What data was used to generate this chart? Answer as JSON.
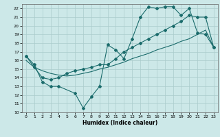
{
  "xlabel": "Humidex (Indice chaleur)",
  "bg_color": "#cce8e8",
  "line_color": "#1a6b6b",
  "grid_color": "#aacccc",
  "xlim": [
    -0.5,
    23.5
  ],
  "ylim": [
    10,
    22.5
  ],
  "xticks": [
    0,
    1,
    2,
    3,
    4,
    5,
    6,
    7,
    8,
    9,
    10,
    11,
    12,
    13,
    14,
    15,
    16,
    17,
    18,
    19,
    20,
    21,
    22,
    23
  ],
  "yticks": [
    10,
    11,
    12,
    13,
    14,
    15,
    16,
    17,
    18,
    19,
    20,
    21,
    22
  ],
  "line1_x": [
    0,
    1,
    2,
    3,
    4,
    6,
    7,
    8,
    9,
    10,
    11,
    12,
    13,
    14,
    15,
    16,
    17,
    18,
    19,
    20,
    21,
    22,
    23
  ],
  "line1_y": [
    16.5,
    15.5,
    13.5,
    13.0,
    13.0,
    12.2,
    10.5,
    11.8,
    13.0,
    17.8,
    17.2,
    16.2,
    18.5,
    21.0,
    22.2,
    22.0,
    22.2,
    22.2,
    21.2,
    22.0,
    19.2,
    19.0,
    17.5
  ],
  "line2_x": [
    0,
    1,
    2,
    3,
    4,
    5,
    6,
    7,
    8,
    9,
    10,
    11,
    12,
    13,
    14,
    15,
    16,
    17,
    18,
    19,
    20,
    21,
    22,
    23
  ],
  "line2_y": [
    16.0,
    15.2,
    14.8,
    14.5,
    14.3,
    14.2,
    14.3,
    14.5,
    14.7,
    15.0,
    15.2,
    15.5,
    15.8,
    16.2,
    16.5,
    16.8,
    17.2,
    17.5,
    17.8,
    18.2,
    18.5,
    19.0,
    19.5,
    17.5
  ],
  "line3_x": [
    0,
    1,
    2,
    3,
    4,
    5,
    6,
    7,
    8,
    9,
    10,
    11,
    12,
    13,
    14,
    15,
    16,
    17,
    18,
    19,
    20,
    21,
    22,
    23
  ],
  "line3_y": [
    16.5,
    15.2,
    14.0,
    13.8,
    14.0,
    14.5,
    14.8,
    15.0,
    15.2,
    15.5,
    15.5,
    16.2,
    17.0,
    17.5,
    18.0,
    18.5,
    19.0,
    19.5,
    20.0,
    20.5,
    21.2,
    21.0,
    21.0,
    17.5
  ],
  "marker1_x": [
    0,
    1,
    2,
    3,
    4,
    6,
    7,
    8,
    9,
    10,
    11,
    12,
    13,
    14,
    15,
    16,
    17,
    18,
    19,
    20,
    21,
    22,
    23
  ],
  "marker1_y": [
    16.5,
    15.5,
    13.5,
    13.0,
    13.0,
    12.2,
    10.5,
    11.8,
    13.0,
    17.8,
    17.2,
    16.2,
    18.5,
    21.0,
    22.2,
    22.0,
    22.2,
    22.2,
    21.2,
    22.0,
    19.2,
    19.0,
    17.5
  ]
}
